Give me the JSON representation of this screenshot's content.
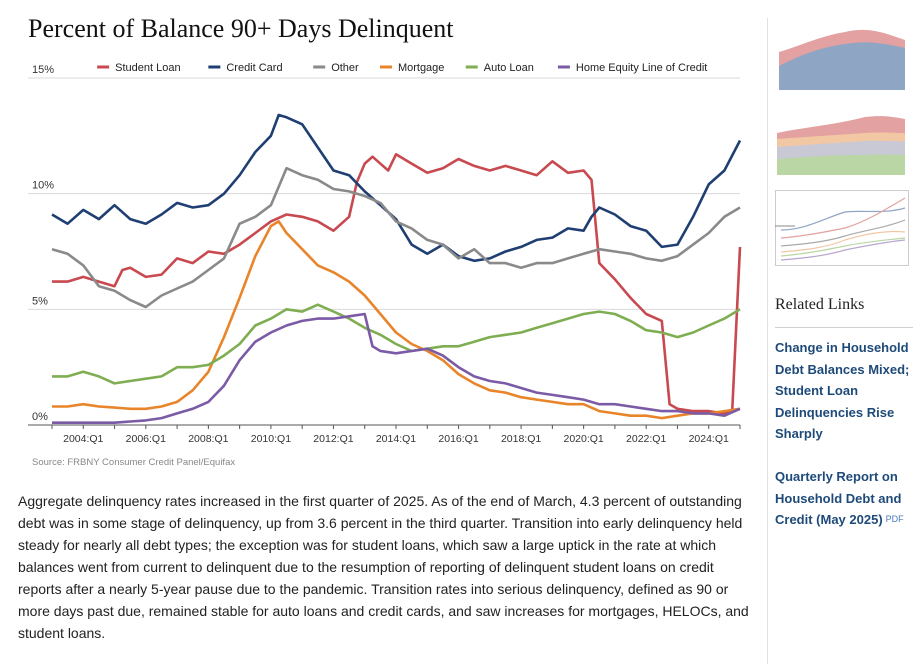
{
  "page": {
    "source": "Source: FRBNY Consumer Credit Panel/Equifax",
    "paragraph": "Aggregate delinquency rates increased in the first quarter of 2025. As of the end of March, 4.3 percent of outstanding debt was in some stage of delinquency, up from 3.6 percent in the third quarter. Transition into early delinquency held steady for nearly all debt types; the exception was for student loans, which saw a large uptick in the rate at which balances went from current to delinquent due to the resumption of reporting of delinquent student loans on credit reports after a nearly 5-year pause due to the pandemic. Transition rates into serious delinquency, defined as 90 or more days past due, remained stable for auto loans and credit cards, and saw increases for mortgages, HELOCs, and student loans."
  },
  "sidebar": {
    "related_title": "Related Links",
    "links": [
      {
        "label": "Change in Household Debt Balances Mixed; Student Loan Delinquencies Rise Sharply"
      },
      {
        "label": "Quarterly Report on Household Debt and Credit (May 2025)",
        "badge": "PDF"
      }
    ],
    "thumbnails": [
      "area-chart-thumbnail",
      "stacked-area-thumbnail",
      "line-chart-thumbnail"
    ]
  },
  "chart_data": {
    "type": "line",
    "title": "Percent of Balance 90+ Days Delinquent",
    "xlabel": "",
    "ylabel": "",
    "ylim": [
      0,
      15
    ],
    "yticks": [
      {
        "v": 0,
        "label": "0%"
      },
      {
        "v": 5,
        "label": "5%"
      },
      {
        "v": 10,
        "label": "10%"
      },
      {
        "v": 15,
        "label": "15%"
      }
    ],
    "xticks": [
      "2004:Q1",
      "2006:Q1",
      "2008:Q1",
      "2010:Q1",
      "2012:Q1",
      "2014:Q1",
      "2016:Q1",
      "2018:Q1",
      "2020:Q1",
      "2022:Q1",
      "2024:Q1"
    ],
    "x_start": "2003:Q1",
    "x_end": "2025:Q1",
    "grid": true,
    "legend_position": "top-right",
    "series": [
      {
        "name": "Student Loan",
        "color": "#c8494f",
        "points": [
          [
            2003,
            6.2
          ],
          [
            2003.5,
            6.2
          ],
          [
            2004,
            6.4
          ],
          [
            2004.5,
            6.2
          ],
          [
            2005,
            6.0
          ],
          [
            2005.25,
            6.7
          ],
          [
            2005.5,
            6.8
          ],
          [
            2006,
            6.4
          ],
          [
            2006.5,
            6.5
          ],
          [
            2007,
            7.2
          ],
          [
            2007.5,
            7.0
          ],
          [
            2008,
            7.5
          ],
          [
            2008.5,
            7.4
          ],
          [
            2009,
            7.8
          ],
          [
            2009.5,
            8.3
          ],
          [
            2010,
            8.8
          ],
          [
            2010.5,
            9.1
          ],
          [
            2011,
            9.0
          ],
          [
            2011.5,
            8.8
          ],
          [
            2012,
            8.4
          ],
          [
            2012.5,
            9.0
          ],
          [
            2012.75,
            10.5
          ],
          [
            2013,
            11.3
          ],
          [
            2013.25,
            11.6
          ],
          [
            2013.75,
            11.0
          ],
          [
            2014,
            11.7
          ],
          [
            2014.5,
            11.3
          ],
          [
            2015,
            10.9
          ],
          [
            2015.5,
            11.1
          ],
          [
            2016,
            11.5
          ],
          [
            2016.5,
            11.2
          ],
          [
            2017,
            11.0
          ],
          [
            2017.5,
            11.2
          ],
          [
            2018,
            11.0
          ],
          [
            2018.5,
            10.8
          ],
          [
            2019,
            11.4
          ],
          [
            2019.5,
            10.9
          ],
          [
            2020,
            11.0
          ],
          [
            2020.25,
            10.6
          ],
          [
            2020.5,
            7.0
          ],
          [
            2021,
            6.3
          ],
          [
            2021.5,
            5.5
          ],
          [
            2022,
            4.8
          ],
          [
            2022.5,
            4.5
          ],
          [
            2022.75,
            0.9
          ],
          [
            2023,
            0.7
          ],
          [
            2023.5,
            0.6
          ],
          [
            2024,
            0.6
          ],
          [
            2024.5,
            0.5
          ],
          [
            2024.75,
            0.6
          ],
          [
            2025,
            7.7
          ]
        ]
      },
      {
        "name": "Credit Card",
        "color": "#1f3f73",
        "points": [
          [
            2003,
            9.1
          ],
          [
            2003.5,
            8.7
          ],
          [
            2004,
            9.3
          ],
          [
            2004.5,
            8.9
          ],
          [
            2005,
            9.5
          ],
          [
            2005.5,
            8.9
          ],
          [
            2006,
            8.7
          ],
          [
            2006.5,
            9.1
          ],
          [
            2007,
            9.6
          ],
          [
            2007.5,
            9.4
          ],
          [
            2008,
            9.5
          ],
          [
            2008.5,
            10.0
          ],
          [
            2009,
            10.8
          ],
          [
            2009.5,
            11.8
          ],
          [
            2010,
            12.5
          ],
          [
            2010.25,
            13.4
          ],
          [
            2010.5,
            13.3
          ],
          [
            2011,
            13.0
          ],
          [
            2011.5,
            12.0
          ],
          [
            2012,
            11.0
          ],
          [
            2012.5,
            10.8
          ],
          [
            2013,
            10.1
          ],
          [
            2013.5,
            9.5
          ],
          [
            2014,
            8.9
          ],
          [
            2014.5,
            7.8
          ],
          [
            2015,
            7.4
          ],
          [
            2015.5,
            7.8
          ],
          [
            2016,
            7.3
          ],
          [
            2016.5,
            7.1
          ],
          [
            2017,
            7.2
          ],
          [
            2017.5,
            7.5
          ],
          [
            2018,
            7.7
          ],
          [
            2018.5,
            8.0
          ],
          [
            2019,
            8.1
          ],
          [
            2019.5,
            8.5
          ],
          [
            2020,
            8.4
          ],
          [
            2020.25,
            9.0
          ],
          [
            2020.5,
            9.4
          ],
          [
            2021,
            9.1
          ],
          [
            2021.5,
            8.6
          ],
          [
            2022,
            8.4
          ],
          [
            2022.5,
            7.7
          ],
          [
            2023,
            7.8
          ],
          [
            2023.5,
            9.0
          ],
          [
            2024,
            10.4
          ],
          [
            2024.5,
            11.0
          ],
          [
            2025,
            12.3
          ]
        ]
      },
      {
        "name": "Other",
        "color": "#8a8a8a",
        "points": [
          [
            2003,
            7.6
          ],
          [
            2003.5,
            7.4
          ],
          [
            2004,
            6.9
          ],
          [
            2004.5,
            6.0
          ],
          [
            2005,
            5.8
          ],
          [
            2005.5,
            5.4
          ],
          [
            2006,
            5.1
          ],
          [
            2006.5,
            5.6
          ],
          [
            2007,
            5.9
          ],
          [
            2007.5,
            6.2
          ],
          [
            2008,
            6.7
          ],
          [
            2008.5,
            7.2
          ],
          [
            2009,
            8.7
          ],
          [
            2009.5,
            9.0
          ],
          [
            2010,
            9.5
          ],
          [
            2010.5,
            11.1
          ],
          [
            2011,
            10.8
          ],
          [
            2011.5,
            10.6
          ],
          [
            2012,
            10.2
          ],
          [
            2012.5,
            10.1
          ],
          [
            2013,
            9.9
          ],
          [
            2013.5,
            9.6
          ],
          [
            2014,
            8.8
          ],
          [
            2014.5,
            8.5
          ],
          [
            2015,
            8.0
          ],
          [
            2015.5,
            7.8
          ],
          [
            2016,
            7.2
          ],
          [
            2016.5,
            7.6
          ],
          [
            2017,
            7.0
          ],
          [
            2017.5,
            7.0
          ],
          [
            2018,
            6.8
          ],
          [
            2018.5,
            7.0
          ],
          [
            2019,
            7.0
          ],
          [
            2019.5,
            7.2
          ],
          [
            2020,
            7.4
          ],
          [
            2020.5,
            7.6
          ],
          [
            2021,
            7.5
          ],
          [
            2021.5,
            7.4
          ],
          [
            2022,
            7.2
          ],
          [
            2022.5,
            7.1
          ],
          [
            2023,
            7.3
          ],
          [
            2023.5,
            7.8
          ],
          [
            2024,
            8.3
          ],
          [
            2024.5,
            9.0
          ],
          [
            2025,
            9.4
          ]
        ]
      },
      {
        "name": "Mortgage",
        "color": "#e8852a",
        "points": [
          [
            2003,
            0.8
          ],
          [
            2003.5,
            0.8
          ],
          [
            2004,
            0.9
          ],
          [
            2004.5,
            0.8
          ],
          [
            2005,
            0.75
          ],
          [
            2005.5,
            0.7
          ],
          [
            2006,
            0.7
          ],
          [
            2006.5,
            0.8
          ],
          [
            2007,
            1.0
          ],
          [
            2007.5,
            1.5
          ],
          [
            2008,
            2.3
          ],
          [
            2008.5,
            3.8
          ],
          [
            2009,
            5.5
          ],
          [
            2009.5,
            7.3
          ],
          [
            2010,
            8.6
          ],
          [
            2010.25,
            8.8
          ],
          [
            2010.5,
            8.3
          ],
          [
            2011,
            7.6
          ],
          [
            2011.5,
            6.9
          ],
          [
            2012,
            6.6
          ],
          [
            2012.5,
            6.2
          ],
          [
            2013,
            5.6
          ],
          [
            2013.5,
            4.8
          ],
          [
            2014,
            4.0
          ],
          [
            2014.5,
            3.5
          ],
          [
            2015,
            3.2
          ],
          [
            2015.5,
            2.8
          ],
          [
            2016,
            2.2
          ],
          [
            2016.5,
            1.8
          ],
          [
            2017,
            1.5
          ],
          [
            2017.5,
            1.4
          ],
          [
            2018,
            1.2
          ],
          [
            2018.5,
            1.1
          ],
          [
            2019,
            1.0
          ],
          [
            2019.5,
            0.9
          ],
          [
            2020,
            0.9
          ],
          [
            2020.5,
            0.6
          ],
          [
            2021,
            0.5
          ],
          [
            2021.5,
            0.4
          ],
          [
            2022,
            0.4
          ],
          [
            2022.5,
            0.3
          ],
          [
            2023,
            0.4
          ],
          [
            2023.5,
            0.5
          ],
          [
            2024,
            0.5
          ],
          [
            2024.5,
            0.6
          ],
          [
            2025,
            0.7
          ]
        ]
      },
      {
        "name": "Auto Loan",
        "color": "#7fae52",
        "points": [
          [
            2003,
            2.1
          ],
          [
            2003.5,
            2.1
          ],
          [
            2004,
            2.3
          ],
          [
            2004.5,
            2.1
          ],
          [
            2005,
            1.8
          ],
          [
            2005.5,
            1.9
          ],
          [
            2006,
            2.0
          ],
          [
            2006.5,
            2.1
          ],
          [
            2007,
            2.5
          ],
          [
            2007.5,
            2.5
          ],
          [
            2008,
            2.6
          ],
          [
            2008.5,
            3.0
          ],
          [
            2009,
            3.5
          ],
          [
            2009.5,
            4.3
          ],
          [
            2010,
            4.6
          ],
          [
            2010.5,
            5.0
          ],
          [
            2011,
            4.9
          ],
          [
            2011.5,
            5.2
          ],
          [
            2012,
            4.9
          ],
          [
            2012.5,
            4.6
          ],
          [
            2013,
            4.2
          ],
          [
            2013.5,
            3.9
          ],
          [
            2014,
            3.5
          ],
          [
            2014.5,
            3.2
          ],
          [
            2015,
            3.3
          ],
          [
            2015.5,
            3.4
          ],
          [
            2016,
            3.4
          ],
          [
            2016.5,
            3.6
          ],
          [
            2017,
            3.8
          ],
          [
            2017.5,
            3.9
          ],
          [
            2018,
            4.0
          ],
          [
            2018.5,
            4.2
          ],
          [
            2019,
            4.4
          ],
          [
            2019.5,
            4.6
          ],
          [
            2020,
            4.8
          ],
          [
            2020.5,
            4.9
          ],
          [
            2021,
            4.8
          ],
          [
            2021.5,
            4.5
          ],
          [
            2022,
            4.1
          ],
          [
            2022.5,
            4.0
          ],
          [
            2023,
            3.8
          ],
          [
            2023.5,
            4.0
          ],
          [
            2024,
            4.3
          ],
          [
            2024.5,
            4.6
          ],
          [
            2025,
            5.0
          ]
        ]
      },
      {
        "name": "Home Equity Line of Credit",
        "color": "#7b5aa6",
        "points": [
          [
            2003,
            0.1
          ],
          [
            2003.5,
            0.1
          ],
          [
            2004,
            0.1
          ],
          [
            2004.5,
            0.1
          ],
          [
            2005,
            0.1
          ],
          [
            2005.5,
            0.15
          ],
          [
            2006,
            0.2
          ],
          [
            2006.5,
            0.3
          ],
          [
            2007,
            0.5
          ],
          [
            2007.5,
            0.7
          ],
          [
            2008,
            1.0
          ],
          [
            2008.5,
            1.7
          ],
          [
            2009,
            2.8
          ],
          [
            2009.5,
            3.6
          ],
          [
            2010,
            4.0
          ],
          [
            2010.5,
            4.3
          ],
          [
            2011,
            4.5
          ],
          [
            2011.5,
            4.6
          ],
          [
            2012,
            4.6
          ],
          [
            2012.5,
            4.7
          ],
          [
            2013,
            4.8
          ],
          [
            2013.25,
            3.4
          ],
          [
            2013.5,
            3.2
          ],
          [
            2014,
            3.1
          ],
          [
            2014.5,
            3.2
          ],
          [
            2015,
            3.3
          ],
          [
            2015.5,
            3.0
          ],
          [
            2016,
            2.5
          ],
          [
            2016.5,
            2.1
          ],
          [
            2017,
            1.9
          ],
          [
            2017.5,
            1.8
          ],
          [
            2018,
            1.6
          ],
          [
            2018.5,
            1.4
          ],
          [
            2019,
            1.3
          ],
          [
            2019.5,
            1.2
          ],
          [
            2020,
            1.1
          ],
          [
            2020.5,
            0.9
          ],
          [
            2021,
            0.9
          ],
          [
            2021.5,
            0.8
          ],
          [
            2022,
            0.7
          ],
          [
            2022.5,
            0.6
          ],
          [
            2023,
            0.6
          ],
          [
            2023.5,
            0.5
          ],
          [
            2024,
            0.5
          ],
          [
            2024.5,
            0.4
          ],
          [
            2025,
            0.7
          ]
        ]
      }
    ]
  }
}
